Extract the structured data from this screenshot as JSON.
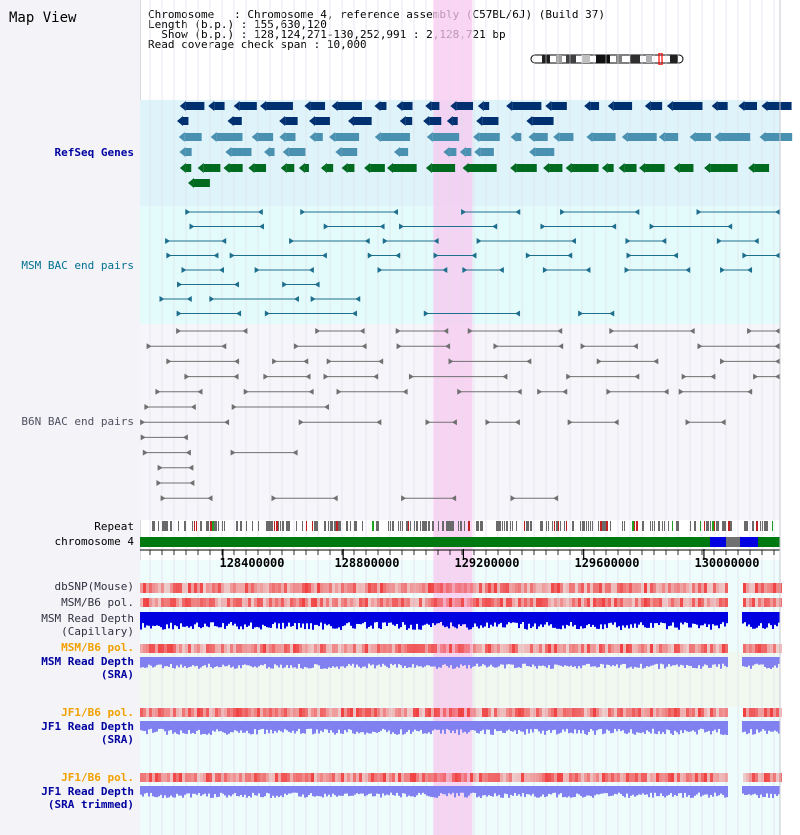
{
  "title": "Map View",
  "info": {
    "chromosome_label": "Chromosome",
    "chromosome_value": "Chromosome 4, reference assembly (C57BL/6J) (Build 37)",
    "length_label": "Length (b.p.)",
    "length_value": "155,630,120",
    "show_label": "Show (b.p.)",
    "show_value": "128,124,271-130,252,991 : 2,128,721 bp",
    "coverage_label": "Read coverage check span",
    "coverage_value": "10,000"
  },
  "tracks": [
    {
      "id": "refseq",
      "label": "RefSeq Genes",
      "style": "navy"
    },
    {
      "id": "msm-bac",
      "label": "MSM BAC end pairs",
      "style": "teal"
    },
    {
      "id": "b6n-bac",
      "label": "B6N BAC end pairs",
      "style": "gray"
    },
    {
      "id": "repeat",
      "label": "Repeat",
      "style": "black"
    },
    {
      "id": "chromosome",
      "label": "chromosome 4",
      "style": "black"
    },
    {
      "id": "dbsnp",
      "label": "dbSNP(Mouse)",
      "style": "dark"
    },
    {
      "id": "msm-pol-1",
      "label": "MSM/B6 pol.",
      "style": "dark"
    },
    {
      "id": "msm-depth-cap",
      "label": "MSM Read Depth",
      "style": "dark"
    },
    {
      "id": "msm-depth-cap-2",
      "label": "(Capillary)",
      "style": "dark"
    },
    {
      "id": "msm-pol-2",
      "label": "MSM/B6 pol.",
      "style": "orange"
    },
    {
      "id": "msm-depth-sra",
      "label": "MSM Read Depth",
      "style": "navy"
    },
    {
      "id": "msm-depth-sra-2",
      "label": "(SRA)",
      "style": "navy"
    },
    {
      "id": "jf1-pol-1",
      "label": "JF1/B6 pol.",
      "style": "orange"
    },
    {
      "id": "jf1-depth-sra",
      "label": "JF1 Read Depth",
      "style": "navy"
    },
    {
      "id": "jf1-depth-sra-2",
      "label": "(SRA)",
      "style": "navy"
    },
    {
      "id": "jf1-pol-2",
      "label": "JF1/B6 pol.",
      "style": "orange"
    },
    {
      "id": "jf1-depth-trim",
      "label": "JF1 Read Depth",
      "style": "navy"
    },
    {
      "id": "jf1-depth-trim-2",
      "label": "(SRA trimmed)",
      "style": "navy"
    }
  ],
  "axis": {
    "range": [
      128124271,
      130252991
    ],
    "tick_labels": [
      "128400000",
      "128800000",
      "129200000",
      "129600000",
      "130000000"
    ],
    "tick_values": [
      128400000,
      128800000,
      129200000,
      129600000,
      130000000
    ]
  },
  "highlight_range": [
    129100000,
    129230000
  ],
  "colors": {
    "refseq_bg": "#dff3fb",
    "bac_bg": "#e4fbfb",
    "highlight": "#f8c8f0",
    "gene_navy": "#003070",
    "gene_light": "#4a90b0",
    "gene_green": "#006a20",
    "bac_teal": "#1e6e8e",
    "bac_gray": "#707070",
    "chrom_green": "#007a10",
    "depth_blue": "#0000e0",
    "depth_light": "#8080f0",
    "snp_red": "#f04040"
  }
}
